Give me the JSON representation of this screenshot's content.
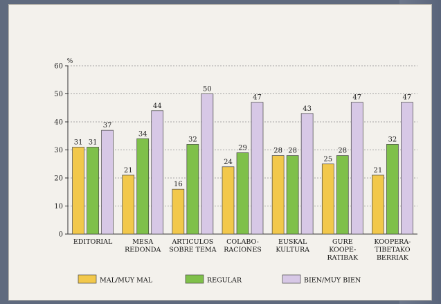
{
  "chart_data": {
    "type": "bar",
    "ylabel": "%",
    "ylim": [
      0,
      60
    ],
    "yticks": [
      0,
      10,
      20,
      30,
      40,
      50,
      60
    ],
    "grid": "horizontal dashed",
    "legend_position": "bottom",
    "categories": [
      [
        "EDITORIAL"
      ],
      [
        "MESA",
        "REDONDA"
      ],
      [
        "ARTICULOS",
        "SOBRE TEMA"
      ],
      [
        "COLABO-",
        "RACIONES"
      ],
      [
        "EUSKAL",
        "KULTURA"
      ],
      [
        "GURE",
        "KOOPE-",
        "RATIBAK"
      ],
      [
        "KOOPERA-",
        "TIBETAKO",
        "BERRIAK"
      ]
    ],
    "series": [
      {
        "name": "MAL/MUY MAL",
        "color": "#f2c84b",
        "values": [
          31,
          21,
          16,
          24,
          28,
          25,
          21
        ],
        "labels": [
          "31",
          "21",
          "16",
          "24",
          "28",
          "25",
          "21"
        ]
      },
      {
        "name": "REGULAR",
        "color": "#7fc04a",
        "values": [
          31,
          34,
          32,
          29,
          28,
          28,
          32
        ],
        "labels": [
          "31",
          "34",
          "32",
          "29",
          "28",
          "28",
          "32"
        ]
      },
      {
        "name": "BIEN/MUY BIEN",
        "color": "#d7c8e6",
        "values": [
          37,
          44,
          50,
          47,
          43,
          47,
          47
        ],
        "labels": [
          "37",
          "44",
          "50",
          "47",
          "43",
          "47",
          "47"
        ]
      }
    ]
  }
}
